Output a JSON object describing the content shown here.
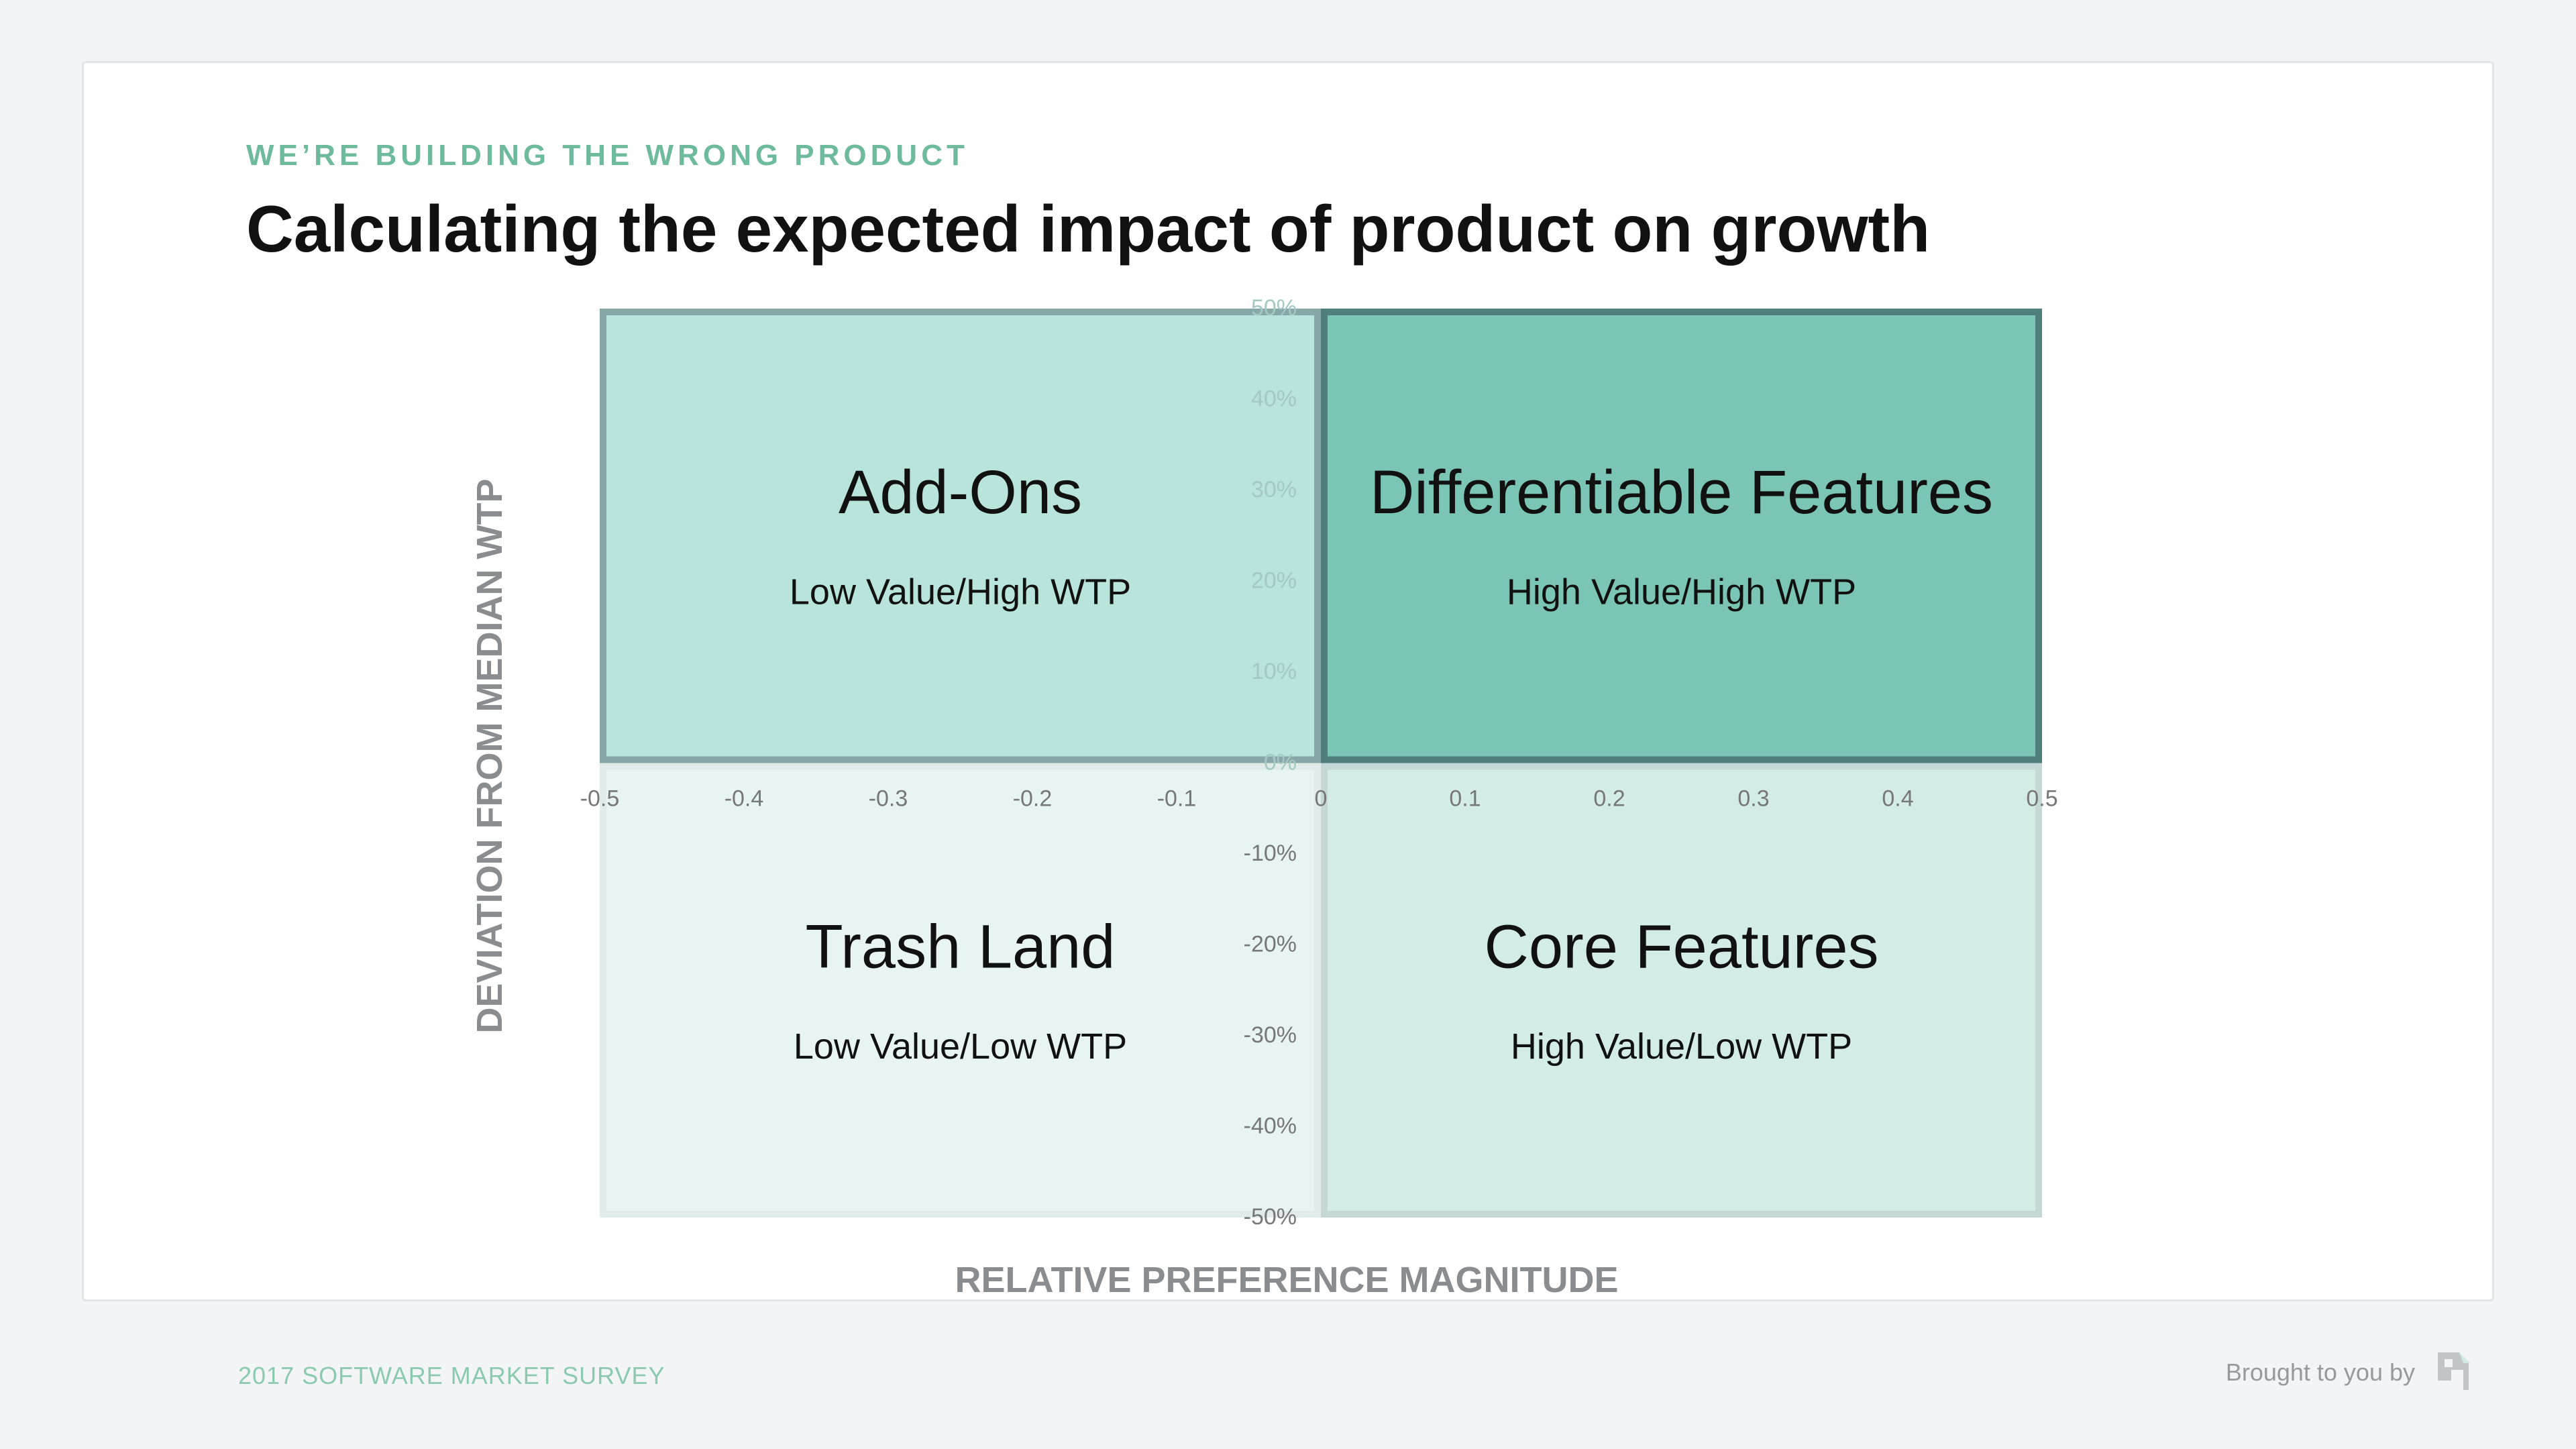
{
  "header": {
    "eyebrow": "WE’RE BUILDING THE WRONG PRODUCT",
    "title": "Calculating the expected impact of product on growth"
  },
  "footer": {
    "survey": "2017 SOFTWARE MARKET SURVEY",
    "credit": "Brought to you by",
    "logo_icon": "company-logo-icon"
  },
  "chart_data": {
    "type": "scatter",
    "xlabel": "RELATIVE PREFERENCE MAGNITUDE",
    "ylabel": "DEVIATION FROM MEDIAN WTP",
    "xlim": [
      -0.5,
      0.5
    ],
    "ylim": [
      -50,
      50
    ],
    "x_ticks": [
      "-0.5",
      "-0.4",
      "-0.3",
      "-0.2",
      "-0.1",
      "0",
      "0.1",
      "0.2",
      "0.3",
      "0.4",
      "0.5"
    ],
    "y_ticks": [
      "50%",
      "40%",
      "30%",
      "20%",
      "10%",
      "0%",
      "-10%",
      "-20%",
      "-30%",
      "-40%",
      "-50%"
    ],
    "grid": false,
    "quadrants": [
      {
        "name": "Add-Ons",
        "desc": "Low Value/High WTP",
        "x": [
          -0.5,
          0
        ],
        "y": [
          0,
          50
        ],
        "fill": "#b9e4dc",
        "border": "#86a8a6"
      },
      {
        "name": "Differentiable Features",
        "desc": "High Value/High WTP",
        "x": [
          0,
          0.5
        ],
        "y": [
          0,
          50
        ],
        "fill": "#7bc5b5",
        "border": "#4f7f7c"
      },
      {
        "name": "Trash Land",
        "desc": "Low Value/Low WTP",
        "x": [
          -0.5,
          0
        ],
        "y": [
          -50,
          0
        ],
        "fill": "#e8f4f1",
        "border": "#e1ecea"
      },
      {
        "name": "Core Features",
        "desc": "High Value/Low WTP",
        "x": [
          0,
          0.5
        ],
        "y": [
          -50,
          0
        ],
        "fill": "#d3ece6",
        "border": "#c6d8d5"
      }
    ]
  }
}
